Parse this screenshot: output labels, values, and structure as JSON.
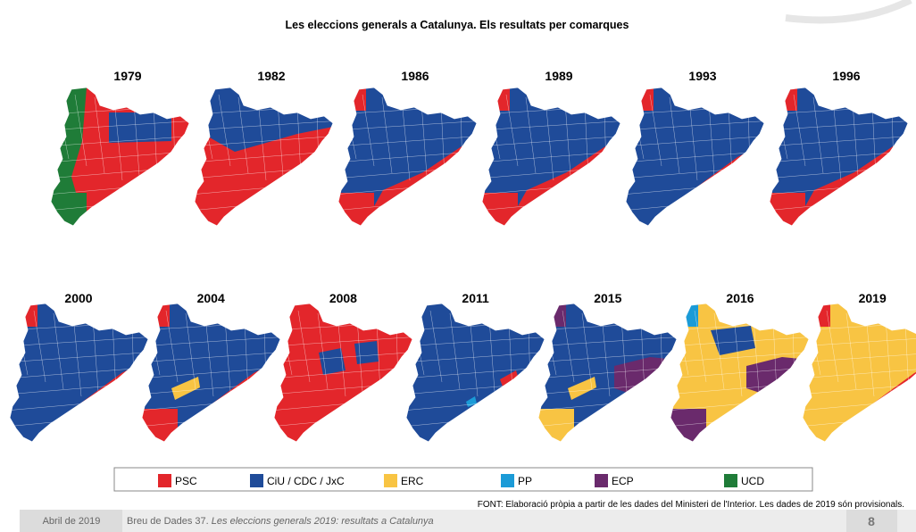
{
  "title": "Les eleccions generals a Catalunya. Els resultats per comarques",
  "maps": [
    {
      "year": "1979"
    },
    {
      "year": "1982"
    },
    {
      "year": "1986"
    },
    {
      "year": "1989"
    },
    {
      "year": "1993"
    },
    {
      "year": "1996"
    },
    {
      "year": "2000"
    },
    {
      "year": "2004"
    },
    {
      "year": "2008"
    },
    {
      "year": "2011"
    },
    {
      "year": "2015"
    },
    {
      "year": "2016"
    },
    {
      "year": "2019"
    }
  ],
  "legend": [
    {
      "label": "PSC",
      "color": "#e3262b"
    },
    {
      "label": "CiU / CDC / JxC",
      "color": "#1f4b99"
    },
    {
      "label": "ERC",
      "color": "#f8c443"
    },
    {
      "label": "PP",
      "color": "#1b9bd7"
    },
    {
      "label": "ECP",
      "color": "#6a2a6c"
    },
    {
      "label": "UCD",
      "color": "#1f7c38"
    }
  ],
  "source": "FONT: Elaboració pròpia a partir de les dades del Ministeri de l'Interior. Les dades de 2019 són provisionals.",
  "footer": {
    "date": "Abril de 2019",
    "series": "Breu de Dades 37.",
    "doc_title": "Les eleccions generals 2019: resultats a Catalunya",
    "page": "8"
  }
}
